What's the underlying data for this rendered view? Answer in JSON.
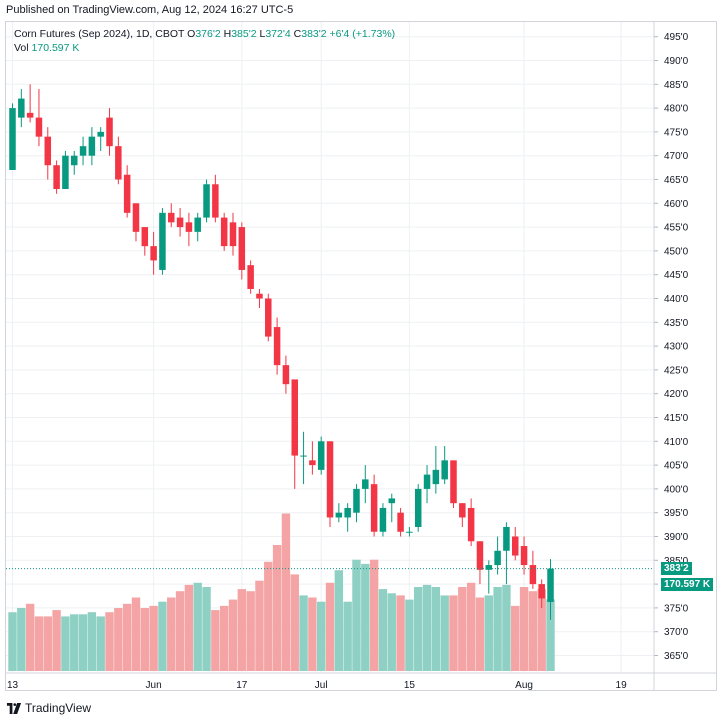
{
  "published": "Published on TradingView.com, Aug 12, 2024 16:27 UTC-5",
  "legend": {
    "symbol": "Corn Futures (Sep 2024), 1D, CBOT",
    "o_label": "O",
    "o_value": "376'2",
    "h_label": "H",
    "h_value": "385'2",
    "l_label": "L",
    "l_value": "372'4",
    "c_label": "C",
    "c_value": "383'2",
    "change": "+6'4 (+1.73%)",
    "vol_label": "Vol",
    "vol_value": "170.597 K"
  },
  "badges": {
    "price": "383'2",
    "volume": "170.597 K"
  },
  "colors": {
    "up": "#089981",
    "down": "#f23645",
    "up_volume": "#8fd0c4",
    "down_volume": "#f4a4a4",
    "grid": "#eef0f3",
    "text": "#131722"
  },
  "footer": {
    "brand": "TradingView",
    "logo_icon": "tradingview-logo-icon"
  },
  "chart_data": {
    "type": "candlestick",
    "title": "Corn Futures (Sep 2024), 1D, CBOT",
    "xlabel": "",
    "ylabel": "",
    "ylim": [
      362.5,
      497.5
    ],
    "y_ticks": [
      "365'0",
      "370'0",
      "375'0",
      "380'0",
      "385'0",
      "390'0",
      "395'0",
      "400'0",
      "405'0",
      "410'0",
      "415'0",
      "420'0",
      "425'0",
      "430'0",
      "435'0",
      "440'0",
      "445'0",
      "450'0",
      "455'0",
      "460'0",
      "465'0",
      "470'0",
      "475'0",
      "480'0",
      "485'0",
      "490'0",
      "495'0"
    ],
    "x_ticks": [
      {
        "label": "13",
        "index": 0
      },
      {
        "label": "Jun",
        "index": 16
      },
      {
        "label": "17",
        "index": 26
      },
      {
        "label": "Jul",
        "index": 35
      },
      {
        "label": "15",
        "index": 45
      },
      {
        "label": "Aug",
        "index": 58
      },
      {
        "label": "19",
        "index": 69
      }
    ],
    "grid": true,
    "last_price": 383.25,
    "candles": [
      {
        "o": 467,
        "h": 481,
        "l": 467,
        "c": 480
      },
      {
        "o": 478,
        "h": 484,
        "l": 476,
        "c": 482
      },
      {
        "o": 479,
        "h": 485,
        "l": 477,
        "c": 478
      },
      {
        "o": 478,
        "h": 484,
        "l": 472,
        "c": 474
      },
      {
        "o": 474,
        "h": 476,
        "l": 465,
        "c": 468
      },
      {
        "o": 468,
        "h": 469,
        "l": 462,
        "c": 463
      },
      {
        "o": 463,
        "h": 471,
        "l": 463,
        "c": 470
      },
      {
        "o": 468,
        "h": 471,
        "l": 466,
        "c": 470
      },
      {
        "o": 470,
        "h": 474,
        "l": 468,
        "c": 472
      },
      {
        "o": 470,
        "h": 476,
        "l": 468,
        "c": 474
      },
      {
        "o": 474,
        "h": 476,
        "l": 471,
        "c": 475
      },
      {
        "o": 478,
        "h": 480,
        "l": 470,
        "c": 472
      },
      {
        "o": 472,
        "h": 474,
        "l": 464,
        "c": 465
      },
      {
        "o": 466,
        "h": 468,
        "l": 457,
        "c": 458
      },
      {
        "o": 460,
        "h": 460,
        "l": 452,
        "c": 454
      },
      {
        "o": 455,
        "h": 455,
        "l": 449,
        "c": 451
      },
      {
        "o": 451,
        "h": 454,
        "l": 445,
        "c": 448
      },
      {
        "o": 446,
        "h": 459,
        "l": 445,
        "c": 458
      },
      {
        "o": 458,
        "h": 460,
        "l": 455,
        "c": 456
      },
      {
        "o": 457,
        "h": 459,
        "l": 453,
        "c": 455
      },
      {
        "o": 456,
        "h": 458,
        "l": 451,
        "c": 454
      },
      {
        "o": 454,
        "h": 458,
        "l": 452,
        "c": 457
      },
      {
        "o": 457,
        "h": 465,
        "l": 456,
        "c": 464
      },
      {
        "o": 464,
        "h": 466,
        "l": 456,
        "c": 457
      },
      {
        "o": 457,
        "h": 458,
        "l": 450,
        "c": 451
      },
      {
        "o": 456,
        "h": 458,
        "l": 449,
        "c": 451
      },
      {
        "o": 455,
        "h": 456,
        "l": 444,
        "c": 446
      },
      {
        "o": 447,
        "h": 448,
        "l": 441,
        "c": 442
      },
      {
        "o": 441,
        "h": 442,
        "l": 438,
        "c": 440
      },
      {
        "o": 440,
        "h": 441,
        "l": 431,
        "c": 432
      },
      {
        "o": 434,
        "h": 436,
        "l": 424,
        "c": 426
      },
      {
        "o": 426,
        "h": 428,
        "l": 420,
        "c": 422
      },
      {
        "o": 423,
        "h": 423,
        "l": 400,
        "c": 407
      },
      {
        "o": 407,
        "h": 412,
        "l": 401,
        "c": 407
      },
      {
        "o": 406,
        "h": 410,
        "l": 403,
        "c": 405
      },
      {
        "o": 404,
        "h": 411,
        "l": 403,
        "c": 410
      },
      {
        "o": 410,
        "h": 410,
        "l": 392,
        "c": 394
      },
      {
        "o": 394,
        "h": 397,
        "l": 393,
        "c": 395
      },
      {
        "o": 394,
        "h": 397,
        "l": 391,
        "c": 396
      },
      {
        "o": 395,
        "h": 401,
        "l": 393,
        "c": 400
      },
      {
        "o": 400,
        "h": 405,
        "l": 397,
        "c": 402
      },
      {
        "o": 401,
        "h": 403,
        "l": 390,
        "c": 391
      },
      {
        "o": 391,
        "h": 397,
        "l": 390,
        "c": 396
      },
      {
        "o": 397,
        "h": 399,
        "l": 393,
        "c": 398
      },
      {
        "o": 395,
        "h": 396,
        "l": 390,
        "c": 391
      },
      {
        "o": 391,
        "h": 392,
        "l": 390,
        "c": 391
      },
      {
        "o": 392,
        "h": 401,
        "l": 391,
        "c": 400
      },
      {
        "o": 400,
        "h": 405,
        "l": 397,
        "c": 403
      },
      {
        "o": 401,
        "h": 409,
        "l": 399,
        "c": 404
      },
      {
        "o": 402,
        "h": 409,
        "l": 401,
        "c": 406
      },
      {
        "o": 406,
        "h": 406,
        "l": 396,
        "c": 397
      },
      {
        "o": 397,
        "h": 397,
        "l": 392,
        "c": 394
      },
      {
        "o": 396,
        "h": 398,
        "l": 388,
        "c": 389
      },
      {
        "o": 389,
        "h": 389,
        "l": 380,
        "c": 383
      },
      {
        "o": 383,
        "h": 385,
        "l": 378,
        "c": 384
      },
      {
        "o": 384,
        "h": 390,
        "l": 382,
        "c": 387
      },
      {
        "o": 387,
        "h": 393,
        "l": 380,
        "c": 392
      },
      {
        "o": 390,
        "h": 392,
        "l": 385,
        "c": 386
      },
      {
        "o": 388,
        "h": 390,
        "l": 382,
        "c": 384
      },
      {
        "o": 384,
        "h": 387,
        "l": 379,
        "c": 380
      },
      {
        "o": 380,
        "h": 381,
        "l": 375,
        "c": 377
      },
      {
        "o": 376.25,
        "h": 385.25,
        "l": 372.5,
        "c": 383.25
      }
    ],
    "volume_scale": 400,
    "volumes": [
      140,
      150,
      160,
      130,
      130,
      145,
      130,
      135,
      135,
      140,
      130,
      140,
      150,
      160,
      175,
      150,
      155,
      165,
      175,
      190,
      205,
      210,
      200,
      145,
      155,
      170,
      195,
      190,
      215,
      260,
      300,
      375,
      230,
      180,
      175,
      165,
      210,
      240,
      165,
      265,
      255,
      265,
      195,
      185,
      180,
      170,
      200,
      205,
      200,
      180,
      180,
      200,
      210,
      175,
      180,
      200,
      205,
      155,
      200,
      190,
      195,
      170.597
    ]
  }
}
